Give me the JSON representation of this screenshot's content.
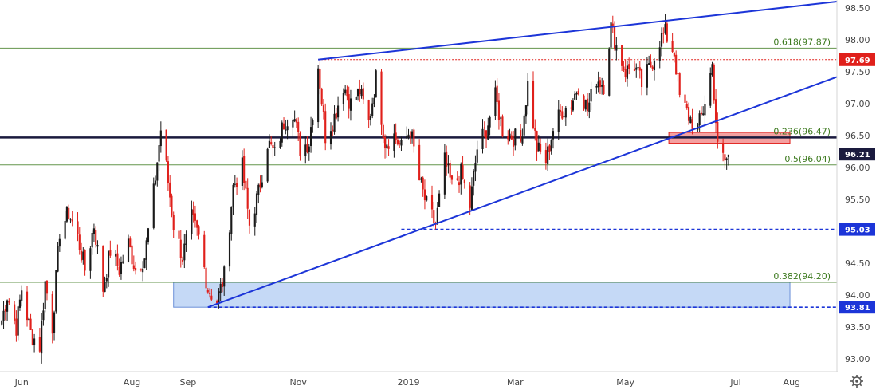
{
  "chart_data": {
    "type": "candlestick",
    "title": "",
    "xlabel": "",
    "ylabel": "",
    "ylim": [
      92.8,
      98.6
    ],
    "xlim": [
      "2018-05-20",
      "2019-08-26"
    ],
    "grid": false,
    "colors": {
      "up": "#1a1a1a",
      "down": "#e0201b",
      "trendline": "#1c35d8",
      "fib": "#3d7a1f",
      "support_line": "#1a1a3e",
      "zone_blue": "#9fc0f0",
      "zone_red": "#f08080",
      "badge_red": "#e0201b",
      "badge_blue": "#1c35d8",
      "badge_dark": "#1a1a3e"
    },
    "y_ticks": [
      "98.50",
      "98.00",
      "97.50",
      "97.00",
      "96.50",
      "96.00",
      "95.50",
      "95.00",
      "94.50",
      "94.00",
      "93.50",
      "93.00"
    ],
    "x_ticks": [
      {
        "date": "2018-06-01",
        "label": "Jun"
      },
      {
        "date": "2018-08-01",
        "label": "Aug"
      },
      {
        "date": "2018-09-01",
        "label": "Sep"
      },
      {
        "date": "2018-11-01",
        "label": "Nov"
      },
      {
        "date": "2019-01-01",
        "label": "2019"
      },
      {
        "date": "2019-03-01",
        "label": "Mar"
      },
      {
        "date": "2019-05-01",
        "label": "May"
      },
      {
        "date": "2019-07-01",
        "label": "Jul"
      },
      {
        "date": "2019-08-01",
        "label": "Aug"
      }
    ],
    "fib_levels": [
      {
        "label": "0.618(97.87)",
        "value": 97.87
      },
      {
        "label": "0.236(96.47)",
        "value": 96.47
      },
      {
        "label": "0.5(96.04)",
        "value": 96.04
      },
      {
        "label": "0.382(94.20)",
        "value": 94.2
      }
    ],
    "price_badges": [
      {
        "label": "97.69",
        "value": 97.69,
        "color": "badge_red"
      },
      {
        "label": "96.21",
        "value": 96.21,
        "color": "badge_dark"
      },
      {
        "label": "95.03",
        "value": 95.03,
        "color": "badge_blue"
      },
      {
        "label": "93.81",
        "value": 93.81,
        "color": "badge_blue"
      }
    ],
    "horizontal_lines": [
      {
        "value": 96.47,
        "style": "solid",
        "color": "support_line",
        "from": "2018-05-20"
      },
      {
        "value": 97.69,
        "style": "dotted",
        "color": "badge_red",
        "from": "2018-11-12"
      },
      {
        "value": 95.03,
        "style": "dashed",
        "color": "badge_blue",
        "from": "2018-12-28"
      },
      {
        "value": 93.81,
        "style": "dashed",
        "color": "badge_blue",
        "from": "2018-09-12"
      }
    ],
    "trendlines": [
      {
        "from": [
          "2018-11-12",
          97.69
        ],
        "to": [
          "2019-08-26",
          98.6
        ]
      },
      {
        "from": [
          "2018-09-12",
          93.81
        ],
        "to": [
          "2019-08-26",
          97.42
        ]
      }
    ],
    "zones": [
      {
        "from": "2018-08-24",
        "to": "2019-07-31",
        "y_low": 93.81,
        "y_high": 94.2,
        "color": "zone_blue"
      },
      {
        "from": "2019-05-25",
        "to": "2019-07-31",
        "y_low": 96.38,
        "y_high": 96.55,
        "color": "zone_red"
      }
    ],
    "series": [
      {
        "type": "close_path",
        "values": [
          [
            "2018-05-21",
            93.6
          ],
          [
            "2018-05-24",
            94.0
          ],
          [
            "2018-05-29",
            93.5
          ],
          [
            "2018-06-01",
            94.1
          ],
          [
            "2018-06-06",
            93.4
          ],
          [
            "2018-06-11",
            93.2
          ],
          [
            "2018-06-14",
            94.2
          ],
          [
            "2018-06-18",
            93.5
          ],
          [
            "2018-06-22",
            95.0
          ],
          [
            "2018-06-27",
            95.3
          ],
          [
            "2018-07-02",
            94.9
          ],
          [
            "2018-07-06",
            94.4
          ],
          [
            "2018-07-11",
            95.1
          ],
          [
            "2018-07-16",
            94.1
          ],
          [
            "2018-07-20",
            94.7
          ],
          [
            "2018-07-25",
            94.4
          ],
          [
            "2018-07-30",
            94.8
          ],
          [
            "2018-08-03",
            94.4
          ],
          [
            "2018-08-08",
            94.6
          ],
          [
            "2018-08-13",
            95.6
          ],
          [
            "2018-08-17",
            96.6
          ],
          [
            "2018-08-20",
            96.0
          ],
          [
            "2018-08-24",
            95.1
          ],
          [
            "2018-08-29",
            94.6
          ],
          [
            "2018-09-03",
            95.2
          ],
          [
            "2018-09-07",
            94.9
          ],
          [
            "2018-09-12",
            94.1
          ],
          [
            "2018-09-17",
            93.9
          ],
          [
            "2018-09-21",
            94.3
          ],
          [
            "2018-09-26",
            95.7
          ],
          [
            "2018-10-01",
            96.0
          ],
          [
            "2018-10-05",
            95.1
          ],
          [
            "2018-10-10",
            95.6
          ],
          [
            "2018-10-15",
            96.4
          ],
          [
            "2018-10-19",
            96.2
          ],
          [
            "2018-10-24",
            96.7
          ],
          [
            "2018-10-29",
            96.9
          ],
          [
            "2018-11-02",
            96.3
          ],
          [
            "2018-11-07",
            96.4
          ],
          [
            "2018-11-12",
            97.6
          ],
          [
            "2018-11-16",
            96.5
          ],
          [
            "2018-11-21",
            96.8
          ],
          [
            "2018-11-26",
            97.3
          ],
          [
            "2018-11-30",
            97.0
          ],
          [
            "2018-12-05",
            97.2
          ],
          [
            "2018-12-10",
            96.7
          ],
          [
            "2018-12-14",
            97.4
          ],
          [
            "2018-12-19",
            96.4
          ],
          [
            "2018-12-24",
            96.5
          ],
          [
            "2018-12-28",
            96.3
          ],
          [
            "2019-01-02",
            96.6
          ],
          [
            "2019-01-07",
            95.8
          ],
          [
            "2019-01-11",
            95.4
          ],
          [
            "2019-01-16",
            95.1
          ],
          [
            "2019-01-21",
            96.1
          ],
          [
            "2019-01-25",
            95.7
          ],
          [
            "2019-01-30",
            95.9
          ],
          [
            "2019-02-04",
            95.4
          ],
          [
            "2019-02-08",
            96.3
          ],
          [
            "2019-02-13",
            96.6
          ],
          [
            "2019-02-18",
            97.1
          ],
          [
            "2019-02-22",
            96.6
          ],
          [
            "2019-02-27",
            96.5
          ],
          [
            "2019-03-04",
            96.4
          ],
          [
            "2019-03-08",
            97.3
          ],
          [
            "2019-03-13",
            96.3
          ],
          [
            "2019-03-18",
            96.1
          ],
          [
            "2019-03-22",
            96.6
          ],
          [
            "2019-03-27",
            96.9
          ],
          [
            "2019-04-01",
            97.0
          ],
          [
            "2019-04-05",
            97.3
          ],
          [
            "2019-04-10",
            96.9
          ],
          [
            "2019-04-15",
            97.4
          ],
          [
            "2019-04-19",
            97.3
          ],
          [
            "2019-04-23",
            98.2
          ],
          [
            "2019-04-26",
            97.9
          ],
          [
            "2019-05-01",
            97.5
          ],
          [
            "2019-05-06",
            97.6
          ],
          [
            "2019-05-10",
            97.3
          ],
          [
            "2019-05-15",
            97.6
          ],
          [
            "2019-05-20",
            98.0
          ],
          [
            "2019-05-23",
            98.1
          ],
          [
            "2019-05-28",
            97.8
          ],
          [
            "2019-05-31",
            97.1
          ],
          [
            "2019-06-05",
            96.8
          ],
          [
            "2019-06-10",
            96.6
          ],
          [
            "2019-06-13",
            96.9
          ],
          [
            "2019-06-18",
            97.6
          ],
          [
            "2019-06-21",
            96.3
          ],
          [
            "2019-06-25",
            96.1
          ],
          [
            "2019-06-28",
            96.2
          ]
        ]
      }
    ]
  }
}
